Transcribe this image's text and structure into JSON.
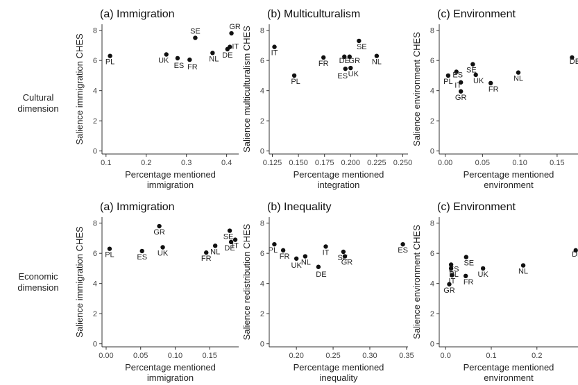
{
  "row_labels": [
    {
      "lines": [
        "Cultural",
        "dimension"
      ]
    },
    {
      "lines": [
        "Economic",
        "dimension"
      ]
    }
  ],
  "chart_data": [
    {
      "type": "scatter",
      "title": "(a) Immigration",
      "xlabel": [
        "Percentage mentioned",
        "immigration"
      ],
      "ylabel": "Salience immigration CHES",
      "xlim": [
        0.09,
        0.43
      ],
      "ylim": [
        -0.2,
        8.4
      ],
      "xticks": [
        0.1,
        0.2,
        0.3,
        0.4
      ],
      "xticklabels": [
        "0.1",
        "0.2",
        "0.3",
        "0.4"
      ],
      "yticks": [
        0,
        2,
        4,
        6,
        8
      ],
      "points": [
        {
          "label": "PL",
          "x": 0.11,
          "y": 6.3
        },
        {
          "label": "UK",
          "x": 0.25,
          "y": 6.4
        },
        {
          "label": "ES",
          "x": 0.278,
          "y": 6.15
        },
        {
          "label": "FR",
          "x": 0.308,
          "y": 6.05
        },
        {
          "label": "SE",
          "x": 0.322,
          "y": 7.5
        },
        {
          "label": "NL",
          "x": 0.365,
          "y": 6.5
        },
        {
          "label": "GR",
          "x": 0.412,
          "y": 7.8
        },
        {
          "label": "IT",
          "x": 0.408,
          "y": 6.9
        },
        {
          "label": "DE",
          "x": 0.402,
          "y": 6.75
        }
      ]
    },
    {
      "type": "scatter",
      "title": "(b) Multiculturalism",
      "xlabel": [
        "Percentage mentioned",
        "integration"
      ],
      "ylabel": "Salience multiculturalism CHES",
      "xlim": [
        0.122,
        0.255
      ],
      "ylim": [
        -0.2,
        8.4
      ],
      "xticks": [
        0.125,
        0.15,
        0.175,
        0.2,
        0.225,
        0.25
      ],
      "xticklabels": [
        "0.125",
        "0.150",
        "0.175",
        "0.200",
        "0.225",
        "0.250"
      ],
      "yticks": [
        0,
        2,
        4,
        6,
        8
      ],
      "points": [
        {
          "label": "IT",
          "x": 0.127,
          "y": 6.9
        },
        {
          "label": "PL",
          "x": 0.146,
          "y": 5.0
        },
        {
          "label": "FR",
          "x": 0.174,
          "y": 6.2
        },
        {
          "label": "DE",
          "x": 0.194,
          "y": 6.25
        },
        {
          "label": "GR",
          "x": 0.199,
          "y": 6.25
        },
        {
          "label": "ES",
          "x": 0.195,
          "y": 5.45
        },
        {
          "label": "UK",
          "x": 0.2,
          "y": 5.5
        },
        {
          "label": "SE",
          "x": 0.208,
          "y": 7.3
        },
        {
          "label": "NL",
          "x": 0.225,
          "y": 6.3
        }
      ]
    },
    {
      "type": "scatter",
      "title": "(c) Environment",
      "xlabel": [
        "Percentage mentioned",
        "environment"
      ],
      "ylabel": "Salience environment CHES",
      "xlim": [
        -0.008,
        0.178
      ],
      "ylim": [
        -0.2,
        8.4
      ],
      "xticks": [
        0.0,
        0.05,
        0.1,
        0.15
      ],
      "xticklabels": [
        "0.00",
        "0.05",
        "0.10",
        "0.15"
      ],
      "yticks": [
        0,
        2,
        4,
        6,
        8
      ],
      "points": [
        {
          "label": "PL",
          "x": 0.004,
          "y": 5.0
        },
        {
          "label": "ES",
          "x": 0.015,
          "y": 5.25
        },
        {
          "label": "IT",
          "x": 0.021,
          "y": 4.55
        },
        {
          "label": "GR",
          "x": 0.021,
          "y": 3.95
        },
        {
          "label": "SE",
          "x": 0.037,
          "y": 5.75
        },
        {
          "label": "UK",
          "x": 0.041,
          "y": 5.05
        },
        {
          "label": "FR",
          "x": 0.061,
          "y": 4.5
        },
        {
          "label": "NL",
          "x": 0.098,
          "y": 5.2
        },
        {
          "label": "DE",
          "x": 0.17,
          "y": 6.2
        }
      ]
    },
    {
      "type": "scatter",
      "title": "(a) Immigration",
      "xlabel": [
        "Percentage mentioned",
        "immigration"
      ],
      "ylabel": "Salience immigration CHES",
      "xlim": [
        -0.006,
        0.192
      ],
      "ylim": [
        -0.2,
        8.4
      ],
      "xticks": [
        0.0,
        0.05,
        0.1,
        0.15
      ],
      "xticklabels": [
        "0.00",
        "0.05",
        "0.10",
        "0.15"
      ],
      "yticks": [
        0,
        2,
        4,
        6,
        8
      ],
      "points": [
        {
          "label": "PL",
          "x": 0.005,
          "y": 6.3
        },
        {
          "label": "ES",
          "x": 0.052,
          "y": 6.15
        },
        {
          "label": "GR",
          "x": 0.077,
          "y": 7.8
        },
        {
          "label": "UK",
          "x": 0.082,
          "y": 6.4
        },
        {
          "label": "FR",
          "x": 0.145,
          "y": 6.05
        },
        {
          "label": "NL",
          "x": 0.158,
          "y": 6.5
        },
        {
          "label": "SE",
          "x": 0.179,
          "y": 7.5
        },
        {
          "label": "DE",
          "x": 0.181,
          "y": 6.75
        },
        {
          "label": "IT",
          "x": 0.187,
          "y": 6.9
        }
      ]
    },
    {
      "type": "scatter",
      "title": "(b) Inequality",
      "xlabel": [
        "Percentage mentioned",
        "inequality"
      ],
      "ylabel": "Salience redistribution CHES",
      "xlim": [
        0.163,
        0.352
      ],
      "ylim": [
        -0.2,
        8.4
      ],
      "xticks": [
        0.2,
        0.25,
        0.3,
        0.35
      ],
      "xticklabels": [
        "0.20",
        "0.25",
        "0.30",
        "0.35"
      ],
      "yticks": [
        0,
        2,
        4,
        6,
        8
      ],
      "points": [
        {
          "label": "PL",
          "x": 0.17,
          "y": 6.6
        },
        {
          "label": "FR",
          "x": 0.182,
          "y": 6.2
        },
        {
          "label": "UK",
          "x": 0.2,
          "y": 5.65
        },
        {
          "label": "NL",
          "x": 0.212,
          "y": 5.8
        },
        {
          "label": "DE",
          "x": 0.23,
          "y": 5.1
        },
        {
          "label": "IT",
          "x": 0.24,
          "y": 6.45
        },
        {
          "label": "SE",
          "x": 0.264,
          "y": 6.1
        },
        {
          "label": "GR",
          "x": 0.266,
          "y": 5.8
        },
        {
          "label": "ES",
          "x": 0.345,
          "y": 6.6
        }
      ]
    },
    {
      "type": "scatter",
      "title": "(c) Environment",
      "xlabel": [
        "Percentage mentioned",
        "environment"
      ],
      "ylabel": "Salience environment CHES",
      "xlim": [
        -0.014,
        0.29
      ],
      "ylim": [
        -0.2,
        8.4
      ],
      "xticks": [
        0.0,
        0.1,
        0.2
      ],
      "xticklabels": [
        "0.0",
        "0.1",
        "0.2"
      ],
      "yticks": [
        0,
        2,
        4,
        6,
        8
      ],
      "points": [
        {
          "label": "ES",
          "x": 0.012,
          "y": 5.25
        },
        {
          "label": "PL",
          "x": 0.012,
          "y": 5.0
        },
        {
          "label": "IT",
          "x": 0.014,
          "y": 4.55
        },
        {
          "label": "GR",
          "x": 0.008,
          "y": 3.95
        },
        {
          "label": "SE",
          "x": 0.045,
          "y": 5.75
        },
        {
          "label": "FR",
          "x": 0.044,
          "y": 4.5
        },
        {
          "label": "UK",
          "x": 0.082,
          "y": 5.0
        },
        {
          "label": "NL",
          "x": 0.17,
          "y": 5.2
        },
        {
          "label": "DE",
          "x": 0.285,
          "y": 6.2
        }
      ]
    }
  ]
}
